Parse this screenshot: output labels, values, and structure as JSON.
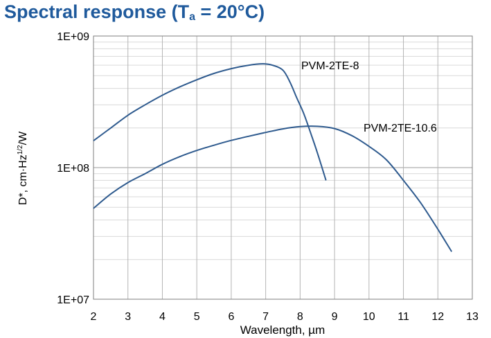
{
  "title": {
    "prefix": "Spectral response (T",
    "subscript": "a",
    "suffix": " = 20°C)"
  },
  "colors": {
    "title": "#1f5a9c",
    "series": "#2e5a8e",
    "grid": "#b4b4b4"
  },
  "chart_data": {
    "type": "line",
    "title": "Spectral response (Ta = 20°C)",
    "xlabel": "Wavelength, µm",
    "ylabel": "D*, cm·Hz1/2/W",
    "ylabel_parts": {
      "main": "D*, cm·Hz",
      "sup": "1/2",
      "tail": "/W"
    },
    "x_range": [
      2,
      13
    ],
    "y_range": [
      10000000.0,
      1000000000.0
    ],
    "y_scale": "log",
    "grid": true,
    "legend": "inline labels",
    "x_ticks": [
      "2",
      "3",
      "4",
      "5",
      "6",
      "7",
      "8",
      "9",
      "10",
      "11",
      "12",
      "13"
    ],
    "y_ticks": [
      {
        "value": 10000000.0,
        "label": "1E+07"
      },
      {
        "value": 100000000.0,
        "label": "1E+08"
      },
      {
        "value": 1000000000.0,
        "label": "1E+09"
      }
    ],
    "series": [
      {
        "name": "PVM-2TE-8",
        "points": [
          [
            2.0,
            160000000.0
          ],
          [
            2.5,
            200000000.0
          ],
          [
            3.0,
            250000000.0
          ],
          [
            3.5,
            300000000.0
          ],
          [
            4.0,
            355000000.0
          ],
          [
            4.5,
            410000000.0
          ],
          [
            5.0,
            465000000.0
          ],
          [
            5.5,
            520000000.0
          ],
          [
            6.0,
            565000000.0
          ],
          [
            6.5,
            600000000.0
          ],
          [
            6.9,
            615000000.0
          ],
          [
            7.2,
            600000000.0
          ],
          [
            7.5,
            550000000.0
          ],
          [
            7.7,
            450000000.0
          ],
          [
            7.9,
            340000000.0
          ],
          [
            8.1,
            260000000.0
          ],
          [
            8.3,
            185000000.0
          ],
          [
            8.5,
            130000000.0
          ],
          [
            8.75,
            80000000.0
          ]
        ]
      },
      {
        "name": "PVM-2TE-10.6",
        "points": [
          [
            2.0,
            49000000.0
          ],
          [
            2.5,
            63000000.0
          ],
          [
            3.0,
            77000000.0
          ],
          [
            3.5,
            90000000.0
          ],
          [
            4.0,
            106000000.0
          ],
          [
            4.5,
            121000000.0
          ],
          [
            5.0,
            135000000.0
          ],
          [
            5.5,
            148000000.0
          ],
          [
            6.0,
            161000000.0
          ],
          [
            6.5,
            173000000.0
          ],
          [
            7.0,
            185000000.0
          ],
          [
            7.5,
            197000000.0
          ],
          [
            8.0,
            205000000.0
          ],
          [
            8.5,
            206000000.0
          ],
          [
            9.0,
            198000000.0
          ],
          [
            9.5,
            175000000.0
          ],
          [
            10.0,
            145000000.0
          ],
          [
            10.5,
            115000000.0
          ],
          [
            11.0,
            80000000.0
          ],
          [
            11.5,
            54000000.0
          ],
          [
            12.0,
            34000000.0
          ],
          [
            12.4,
            23000000.0
          ]
        ]
      }
    ]
  }
}
